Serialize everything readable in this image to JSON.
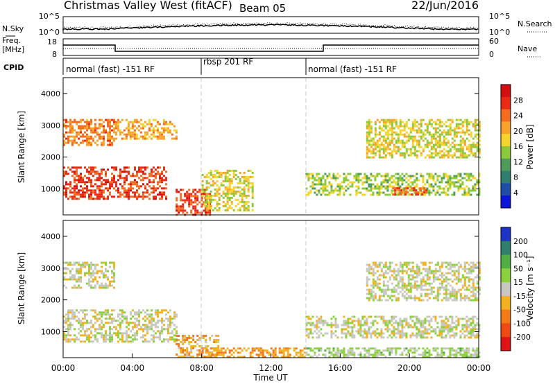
{
  "header": {
    "title": "Christmas Valley West (fitACF)",
    "beam": "Beam 05",
    "date": "22/Jun/2016"
  },
  "panels": {
    "nsky": {
      "left_label": "N.Sky",
      "ticks_left": [
        "10^5",
        "10^0"
      ],
      "ticks_right": [
        "10^5",
        "10^0"
      ],
      "right_label": "N.Search"
    },
    "freq": {
      "left_label_line1": "Freq.",
      "left_label_line2": "[MHz]",
      "ticks_left": [
        "18",
        "8"
      ],
      "ticks_right": [
        "60",
        "0"
      ],
      "right_label": "Nave"
    },
    "cpid": {
      "label": "CPID",
      "segments": [
        "normal (fast) -151 RF",
        "rbsp 201 RF",
        "normal (fast) -151 RF"
      ]
    }
  },
  "x_axis": {
    "label": "Time UT",
    "ticks": [
      "00:00",
      "04:00",
      "08:00",
      "12:00",
      "16:00",
      "20:00",
      "00:00"
    ]
  },
  "colors": {
    "power_scale": [
      "#0b14d8",
      "#1f4ea8",
      "#2f7f6f",
      "#4f9b5a",
      "#8bc83a",
      "#f5d52d",
      "#f7a32b",
      "#f46d1f",
      "#ea2a14",
      "#d40f0f"
    ],
    "velocity_scale": [
      "#1e33c8",
      "#2f7f6f",
      "#4fae44",
      "#8bd13c",
      "#c8c8c0",
      "#f2b21f",
      "#f47a16",
      "#f04a14",
      "#e01414"
    ]
  },
  "chart_data": [
    {
      "type": "heatmap",
      "title": "",
      "xlabel": "Time UT",
      "ylabel": "Slant Range [km]",
      "xlim": [
        "00:00",
        "24:00"
      ],
      "ylim": [
        180,
        4500
      ],
      "y_ticks": [
        "1000",
        "2000",
        "3000",
        "4000"
      ],
      "colorbar": {
        "label": "Power [dB]",
        "ticks": [
          "4",
          "8",
          "12",
          "16",
          "20",
          "24",
          "28"
        ],
        "range": [
          0,
          30
        ]
      },
      "regions": [
        {
          "start": "00:00",
          "end": "03:00",
          "range_km": [
            2400,
            3200
          ],
          "value_db": 22
        },
        {
          "start": "00:00",
          "end": "06:00",
          "range_km": [
            700,
            1700
          ],
          "value_db": 26
        },
        {
          "start": "03:00",
          "end": "06:30",
          "range_km": [
            2600,
            3200
          ],
          "value_db": 20
        },
        {
          "start": "06:30",
          "end": "08:30",
          "range_km": [
            180,
            1000
          ],
          "value_db": 26
        },
        {
          "start": "08:00",
          "end": "11:00",
          "range_km": [
            300,
            1600
          ],
          "value_db": 16
        },
        {
          "start": "14:00",
          "end": "24:00",
          "range_km": [
            800,
            1500
          ],
          "value_db": 14
        },
        {
          "start": "17:30",
          "end": "24:00",
          "range_km": [
            2000,
            3200
          ],
          "value_db": 16
        },
        {
          "start": "19:00",
          "end": "21:00",
          "range_km": [
            850,
            1050
          ],
          "value_db": 24
        }
      ]
    },
    {
      "type": "heatmap",
      "title": "",
      "xlabel": "Time UT",
      "ylabel": "Slant Range [km]",
      "xlim": [
        "00:00",
        "24:00"
      ],
      "ylim": [
        180,
        4500
      ],
      "y_ticks": [
        "1000",
        "2000",
        "3000",
        "4000"
      ],
      "colorbar": {
        "label": "Velocity [m s⁻¹]",
        "ticks": [
          "200",
          "100",
          "50",
          "15",
          "-15",
          "-50",
          "-100",
          "-200"
        ],
        "range": [
          -250,
          250
        ]
      },
      "regions": [
        {
          "start": "00:00",
          "end": "03:00",
          "range_km": [
            2400,
            3200
          ],
          "value_ms": 0
        },
        {
          "start": "00:00",
          "end": "06:30",
          "range_km": [
            700,
            1700
          ],
          "value_ms": 0
        },
        {
          "start": "06:30",
          "end": "09:00",
          "range_km": [
            180,
            900
          ],
          "value_ms": -60
        },
        {
          "start": "08:00",
          "end": "14:00",
          "range_km": [
            180,
            500
          ],
          "value_ms": -90
        },
        {
          "start": "14:00",
          "end": "24:00",
          "range_km": [
            800,
            1500
          ],
          "value_ms": 0
        },
        {
          "start": "14:00",
          "end": "24:00",
          "range_km": [
            180,
            500
          ],
          "value_ms": 40
        },
        {
          "start": "17:30",
          "end": "24:00",
          "range_km": [
            2000,
            3200
          ],
          "value_ms": 0
        }
      ]
    }
  ]
}
